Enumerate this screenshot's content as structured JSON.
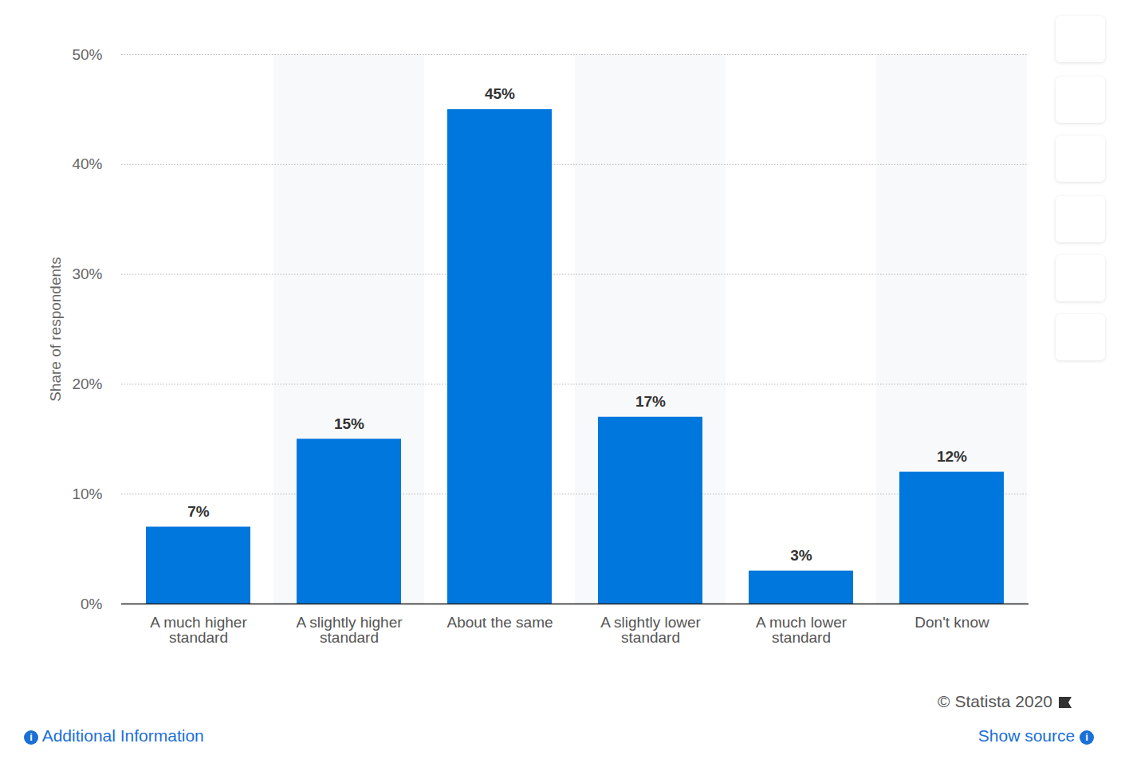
{
  "chart_data": {
    "type": "bar",
    "categories": [
      "A much higher standard",
      "A slightly higher standard",
      "About the same",
      "A slightly lower standard",
      "A much lower standard",
      "Don't know"
    ],
    "values": [
      7,
      15,
      45,
      17,
      3,
      12
    ],
    "value_labels": [
      "7%",
      "15%",
      "45%",
      "17%",
      "3%",
      "12%"
    ],
    "data_labels": true,
    "color": "#0077dd",
    "y_label": "Share of respondents",
    "ylim": [
      0,
      50
    ],
    "yticks": [
      {
        "value": 0,
        "label": "0%"
      },
      {
        "value": 10,
        "label": "10%"
      },
      {
        "value": 20,
        "label": "20%"
      },
      {
        "value": 30,
        "label": "30%"
      },
      {
        "value": 40,
        "label": "40%"
      },
      {
        "value": 50,
        "label": "50%"
      }
    ],
    "grid": true,
    "annotations": [
      "© Statista 2020",
      "Additional Information",
      "Show source"
    ]
  }
}
